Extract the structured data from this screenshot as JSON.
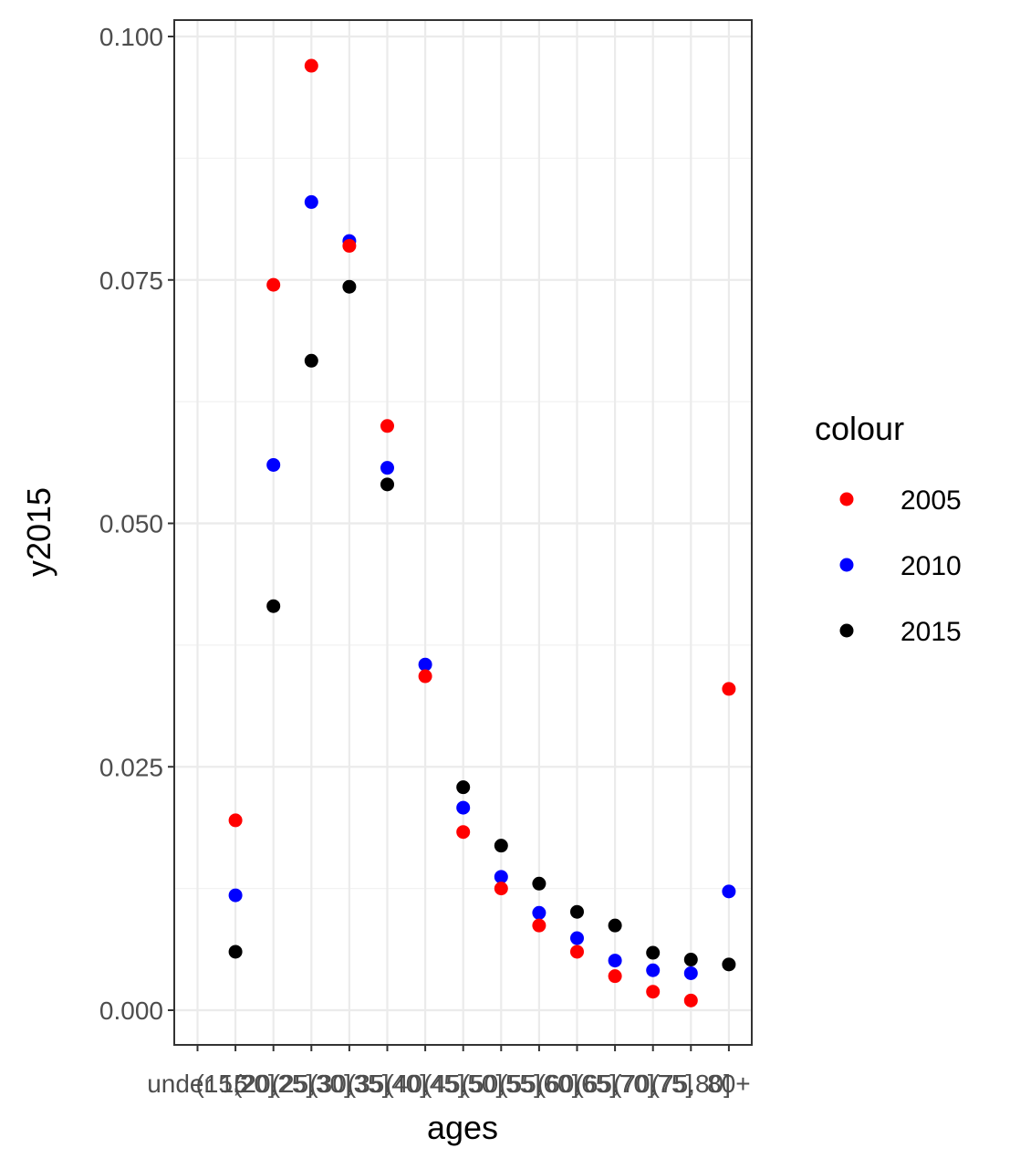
{
  "chart_data": {
    "type": "scatter",
    "categories": [
      "under 15",
      "(15,20]",
      "(20,25]",
      "(25,30]",
      "(30,35]",
      "(35,40]",
      "(40,45]",
      "(45,50]",
      "(50,55]",
      "(55,60]",
      "(60,65]",
      "(65,70]",
      "(70,75]",
      "(75,80]",
      "80+"
    ],
    "xlabel": "ages",
    "ylabel": "y2015",
    "ylim": [
      -0.0035,
      0.1015
    ],
    "yticks": [
      0.0,
      0.025,
      0.05,
      0.075,
      0.1
    ],
    "ytick_labels": [
      "0.000",
      "0.025",
      "0.050",
      "0.075",
      "0.100"
    ],
    "grid": true,
    "legend": {
      "title": "colour",
      "position": "right"
    },
    "series": [
      {
        "name": "2005",
        "color": "#ff0000",
        "values": [
          null,
          0.0195,
          0.0745,
          0.097,
          0.0785,
          0.06,
          0.0343,
          0.0183,
          0.0125,
          0.0087,
          0.006,
          0.0035,
          0.0019,
          0.001,
          0.033
        ]
      },
      {
        "name": "2010",
        "color": "#0000ff",
        "values": [
          null,
          0.0118,
          0.056,
          0.083,
          0.079,
          0.0557,
          0.0355,
          0.0208,
          0.0137,
          0.01,
          0.0074,
          0.0051,
          0.0041,
          0.0038,
          0.0122
        ]
      },
      {
        "name": "2015",
        "color": "#000000",
        "values": [
          null,
          0.006,
          0.0415,
          0.0667,
          0.0743,
          0.054,
          null,
          0.0229,
          0.0169,
          0.013,
          0.0101,
          0.0087,
          0.0059,
          0.0052,
          0.0047
        ]
      }
    ]
  }
}
